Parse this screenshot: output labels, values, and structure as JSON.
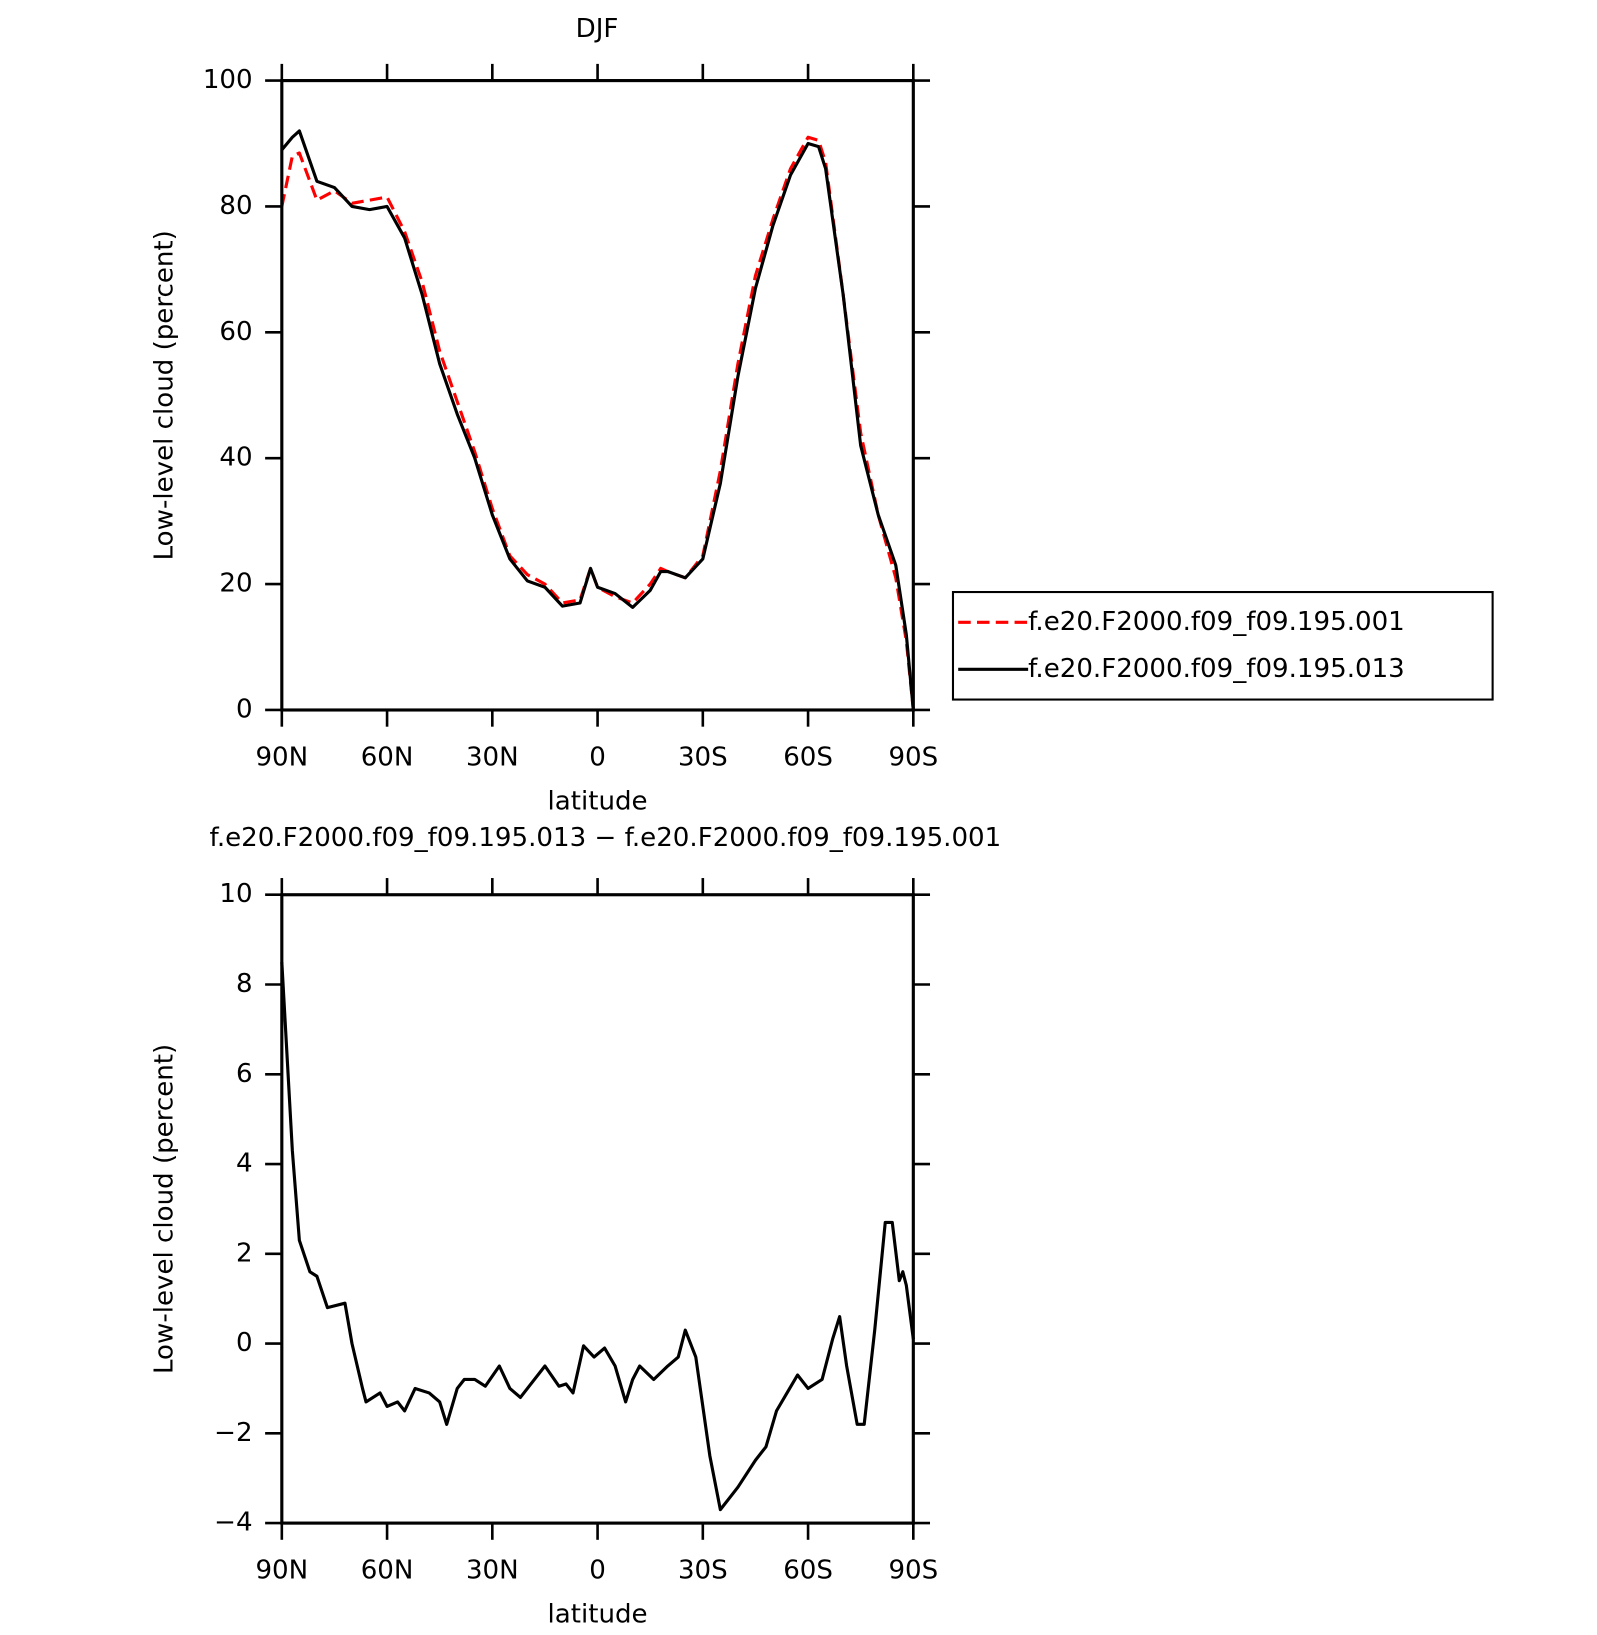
{
  "chart_data": [
    {
      "type": "line",
      "title": "DJF",
      "xlabel": "latitude",
      "ylabel": "Low-level cloud (percent)",
      "xlim": [
        90,
        -90
      ],
      "xticks": [
        {
          "value": 90,
          "label": "90N"
        },
        {
          "value": 60,
          "label": "60N"
        },
        {
          "value": 30,
          "label": "30N"
        },
        0,
        {
          "value": -30,
          "label": "30S"
        },
        {
          "value": -60,
          "label": "60S"
        },
        {
          "value": -90,
          "label": "90S"
        }
      ],
      "ylim": [
        0,
        100
      ],
      "yticks": [
        0,
        20,
        40,
        60,
        80,
        100
      ],
      "legend": "right",
      "x": [
        90,
        87,
        85,
        80,
        75,
        70,
        65,
        60,
        55,
        50,
        45,
        40,
        35,
        30,
        25,
        20,
        15,
        10,
        5,
        2,
        0,
        -5,
        -10,
        -15,
        -18,
        -20,
        -25,
        -30,
        -35,
        -40,
        -45,
        -50,
        -55,
        -60,
        -63,
        -65,
        -70,
        -75,
        -80,
        -85,
        -88,
        -90
      ],
      "series": [
        {
          "name": "f.e20.F2000.f09_f09.195.001",
          "color": "#ff0000",
          "dashed": true,
          "values": [
            80,
            88,
            88.5,
            81,
            82.5,
            80.5,
            81,
            81.5,
            76,
            68,
            57,
            49,
            41,
            32,
            24.5,
            21.5,
            20,
            17,
            17.5,
            22.5,
            19.5,
            18,
            17,
            20,
            22.5,
            22,
            21,
            24.5,
            38,
            55,
            69,
            78,
            86,
            91,
            90.5,
            87,
            66,
            44,
            31,
            21,
            11,
            0
          ]
        },
        {
          "name": "f.e20.F2000.f09_f09.195.013",
          "color": "#000000",
          "dashed": false,
          "values": [
            89,
            91,
            92,
            84,
            83,
            80,
            79.5,
            80,
            75,
            66,
            55,
            47,
            40,
            31,
            24,
            20.5,
            19.5,
            16.5,
            17,
            22.5,
            19.5,
            18.5,
            16.3,
            19,
            22,
            22,
            21,
            24,
            36,
            53,
            67,
            77,
            85,
            90,
            89.5,
            86,
            66,
            42,
            31,
            23,
            12,
            0
          ]
        }
      ]
    },
    {
      "type": "line",
      "title": "f.e20.F2000.f09_f09.195.013 − f.e20.F2000.f09_f09.195.001",
      "xlabel": "latitude",
      "ylabel": "Low-level cloud (percent)",
      "xlim": [
        90,
        -90
      ],
      "xticks": [
        {
          "value": 90,
          "label": "90N"
        },
        {
          "value": 60,
          "label": "60N"
        },
        {
          "value": 30,
          "label": "30N"
        },
        0,
        {
          "value": -30,
          "label": "30S"
        },
        {
          "value": -60,
          "label": "60S"
        },
        {
          "value": -90,
          "label": "90S"
        }
      ],
      "ylim": [
        -4,
        10
      ],
      "yticks": [
        {
          "value": -4,
          "label": "−4"
        },
        {
          "value": -2,
          "label": "−2"
        },
        0,
        2,
        4,
        6,
        8,
        10
      ],
      "x": [
        90,
        87,
        85,
        82,
        80,
        77,
        72,
        70,
        67,
        66,
        62,
        60,
        57,
        55,
        52,
        48,
        45,
        43,
        40,
        38,
        35,
        32,
        28,
        25,
        22,
        19,
        15,
        11,
        9,
        7,
        4,
        1,
        -2,
        -5,
        -8,
        -10,
        -12,
        -16,
        -20,
        -23,
        -25,
        -28,
        -32,
        -35,
        -38,
        -40,
        -45,
        -48,
        -51,
        -54,
        -57,
        -60,
        -64,
        -67,
        -69,
        -71,
        -74,
        -76,
        -79,
        -82,
        -84,
        -86,
        -87,
        -88,
        -90
      ],
      "series": [
        {
          "color": "#000000",
          "dashed": false,
          "values": [
            8.5,
            4.3,
            2.3,
            1.6,
            1.5,
            0.8,
            0.9,
            0,
            -1.0,
            -1.3,
            -1.1,
            -1.4,
            -1.3,
            -1.5,
            -1.0,
            -1.1,
            -1.3,
            -1.8,
            -1.0,
            -0.8,
            -0.8,
            -0.95,
            -0.5,
            -1.0,
            -1.2,
            -0.9,
            -0.5,
            -0.95,
            -0.9,
            -1.1,
            -0.05,
            -0.3,
            -0.1,
            -0.5,
            -1.3,
            -0.8,
            -0.5,
            -0.8,
            -0.5,
            -0.3,
            0.3,
            -0.3,
            -2.5,
            -3.7,
            -3.4,
            -3.2,
            -2.6,
            -2.3,
            -1.5,
            -1.1,
            -0.7,
            -1.0,
            -0.8,
            0.1,
            0.6,
            -0.5,
            -1.8,
            -1.8,
            0.3,
            2.7,
            2.7,
            1.4,
            1.6,
            1.3,
            0.1
          ]
        }
      ]
    }
  ]
}
